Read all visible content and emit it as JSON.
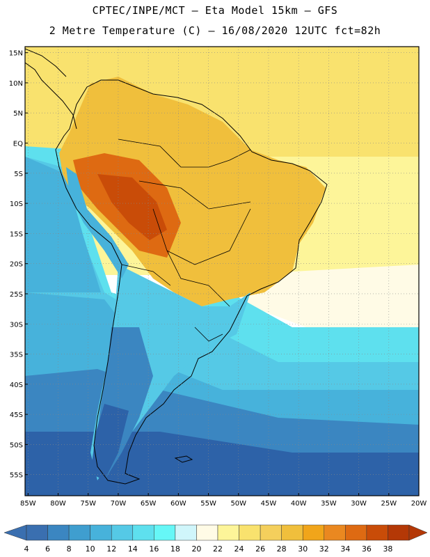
{
  "header": {
    "line1": "CPTEC/INPE/MCT –  Eta Model 15km – GFS",
    "line2": "2 Metre Temperature (C) – 16/08/2020 12UTC fct=82h"
  },
  "map": {
    "lat_labels": [
      "15N",
      "10N",
      "5N",
      "EQ",
      "5S",
      "10S",
      "15S",
      "20S",
      "25S",
      "30S",
      "35S",
      "40S",
      "45S",
      "50S",
      "55S"
    ],
    "lon_labels": [
      "85W",
      "80W",
      "75W",
      "70W",
      "65W",
      "60W",
      "55W",
      "50W",
      "45W",
      "40W",
      "35W",
      "30W",
      "25W",
      "20W"
    ],
    "lat_values": [
      15,
      10,
      5,
      0,
      -5,
      -10,
      -15,
      -20,
      -25,
      -30,
      -35,
      -40,
      -45,
      -50,
      -55
    ],
    "lon_values": [
      -85,
      -80,
      -75,
      -70,
      -65,
      -60,
      -55,
      -50,
      -45,
      -40,
      -35,
      -30,
      -25,
      -20
    ],
    "extent": {
      "lon_min": -85.5,
      "lon_max": -20,
      "lat_min": -58.5,
      "lat_max": 16
    }
  },
  "colorbar": {
    "labels": [
      "4",
      "6",
      "8",
      "10",
      "12",
      "14",
      "16",
      "18",
      "20",
      "22",
      "24",
      "26",
      "28",
      "30",
      "32",
      "34",
      "36",
      "38"
    ],
    "colors": [
      "#3a6fb0",
      "#3b86c1",
      "#3f9ecf",
      "#47b2db",
      "#55c9e6",
      "#5ee0ee",
      "#66f7f7",
      "#d0f6fb",
      "#fffbe6",
      "#fdf599",
      "#f9e26e",
      "#f4cf5c",
      "#f0bf3c",
      "#f1a51a",
      "#ea8820",
      "#de6a12",
      "#c94c08",
      "#b43806"
    ],
    "left_arrow_color": "#3a6fb0",
    "right_arrow_color": "#b43806"
  },
  "palette": {
    "deep_blue": "#2d62a8",
    "mid_blue": "#3b86c1",
    "cyan": "#55c9e6",
    "pale_cyan": "#5ee0ee",
    "warm_yellow": "#f9e26e",
    "orange": "#f0bf3c",
    "dark_orange": "#de6a12",
    "pale_yellow": "#fdf599",
    "cream": "#fffbe6"
  }
}
